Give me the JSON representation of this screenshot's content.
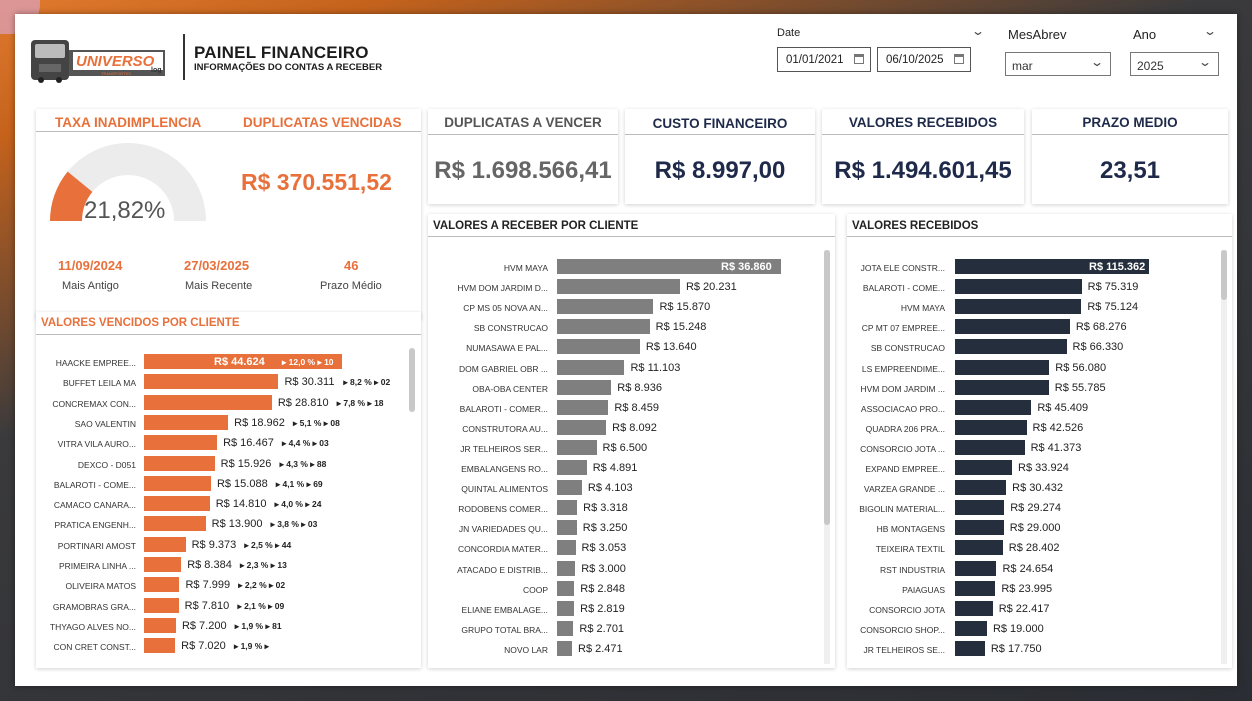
{
  "header": {
    "title": "PAINEL FINANCEIRO",
    "subtitle": "INFORMAÇÕES DO CONTAS A RECEBER",
    "logo_text": "UNIVERSO log TRANSPORTES"
  },
  "filters": {
    "date_label": "Date",
    "date_start": "01/01/2021",
    "date_end": "06/10/2025",
    "month_label": "MesAbrev",
    "month_value": "mar",
    "year_label": "Ano",
    "year_value": "2025"
  },
  "colors": {
    "orange": "#e8703a",
    "gray": "#7f7f7f",
    "navy": "#252e3d",
    "dark_navy_text": "#1f2a4a"
  },
  "kpis": {
    "taxa_title": "TAXA INADIMPLENCIA",
    "taxa_value": "21,82%",
    "taxa_fraction": 0.2182,
    "vencidas_title": "DUPLICATAS VENCIDAS",
    "vencidas_value": "R$ 370.551,52",
    "a_vencer_title": "DUPLICATAS A VENCER",
    "a_vencer_value": "R$ 1.698.566,41",
    "custo_title": "CUSTO FINANCEIRO",
    "custo_value": "R$ 8.997,00",
    "recebidos_title": "VALORES RECEBIDOS",
    "recebidos_value": "R$ 1.494.601,45",
    "prazo_title": "PRAZO MEDIO",
    "prazo_value": "23,51",
    "mais_antigo_value": "11/09/2024",
    "mais_antigo_label": "Mais Antigo",
    "mais_recente_value": "27/03/2025",
    "mais_recente_label": "Mais Recente",
    "prazo_medio_value": "46",
    "prazo_medio_label": "Prazo Médio"
  },
  "chart_data": [
    {
      "type": "bar",
      "title": "VALORES VENCIDOS POR CLIENTE",
      "categories": [
        "HAACKE EMPREE...",
        "BUFFET LEILA MA",
        "CONCREMAX CON...",
        "SAO VALENTIN",
        "VITRA VILA AURO...",
        "DEXCO - D051",
        "BALAROTI - COME...",
        "CAMACO CANARA...",
        "PRATICA ENGENH...",
        "PORTINARI AMOST",
        "PRIMEIRA LINHA ...",
        "OLIVEIRA MATOS",
        "GRAMOBRAS GRA...",
        "THYAGO ALVES NO...",
        "CON CRET CONST..."
      ],
      "values": [
        44624,
        30311,
        28810,
        18962,
        16467,
        15926,
        15088,
        14810,
        13900,
        9373,
        8384,
        7999,
        7810,
        7200,
        7020
      ],
      "labels": [
        "R$ 44.624",
        "R$ 30.311",
        "R$ 28.810",
        "R$ 18.962",
        "R$ 16.467",
        "R$ 15.926",
        "R$ 15.088",
        "R$ 14.810",
        "R$ 13.900",
        "R$ 9.373",
        "R$ 8.384",
        "R$ 7.999",
        "R$ 7.810",
        "R$ 7.200",
        "R$ 7.020"
      ],
      "extras": [
        "▸ 12,0 % ▸ 10",
        "▸ 8,2 % ▸ 02",
        "▸ 7,8 % ▸ 18",
        "▸ 5,1 % ▸ 08",
        "▸ 4,4 % ▸ 03",
        "▸ 4,3 % ▸ 88",
        "▸ 4,1 % ▸ 69",
        "▸ 4,0 % ▸ 24",
        "▸ 3,8 % ▸ 03",
        "▸ 2,5 % ▸ 44",
        "▸ 2,3 % ▸ 13",
        "▸ 2,2 % ▸ 02",
        "▸ 2,1 % ▸ 09",
        "▸ 1,9 % ▸ 81",
        "▸ 1,9 % ▸"
      ],
      "color": "#e8703a"
    },
    {
      "type": "bar",
      "title": "VALORES A RECEBER POR CLIENTE",
      "categories": [
        "HVM MAYA",
        "HVM DOM JARDIM D...",
        "CP MS 05 NOVA AN...",
        "SB CONSTRUCAO",
        "NUMASAWA E PAL...",
        "DOM GABRIEL OBR ...",
        "OBA-OBA CENTER",
        "BALAROTI - COMER...",
        "CONSTRUTORA AU...",
        "JR TELHEIROS SER...",
        "EMBALANGENS RO...",
        "QUINTAL ALIMENTOS",
        "RODOBENS COMER...",
        "JN VARIEDADES QU...",
        "CONCORDIA MATER...",
        "ATACADO E DISTRIB...",
        "COOP",
        "ELIANE EMBALAGE...",
        "GRUPO TOTAL BRA...",
        "NOVO LAR"
      ],
      "values": [
        36860,
        20231,
        15870,
        15248,
        13640,
        11103,
        8936,
        8459,
        8092,
        6500,
        4891,
        4103,
        3318,
        3250,
        3053,
        3000,
        2848,
        2819,
        2701,
        2471
      ],
      "labels": [
        "R$ 36.860",
        "R$ 20.231",
        "R$ 15.870",
        "R$ 15.248",
        "R$ 13.640",
        "R$ 11.103",
        "R$ 8.936",
        "R$ 8.459",
        "R$ 8.092",
        "R$ 6.500",
        "R$ 4.891",
        "R$ 4.103",
        "R$ 3.318",
        "R$ 3.250",
        "R$ 3.053",
        "R$ 3.000",
        "R$ 2.848",
        "R$ 2.819",
        "R$ 2.701",
        "R$ 2.471"
      ],
      "color": "#7f7f7f"
    },
    {
      "type": "bar",
      "title": "VALORES RECEBIDOS",
      "categories": [
        "JOTA ELE CONSTR...",
        "BALAROTI - COME...",
        "HVM MAYA",
        "CP MT 07 EMPREE...",
        "SB CONSTRUCAO",
        "LS EMPREENDIME...",
        "HVM DOM JARDIM ...",
        "ASSOCIACAO PRO...",
        "QUADRA 206 PRA...",
        "CONSORCIO JOTA ...",
        "EXPAND EMPREE...",
        "VARZEA GRANDE ...",
        "BIGOLIN MATERIAL...",
        "HB MONTAGENS",
        "TEIXEIRA TEXTIL",
        "RST INDUSTRIA",
        "PAIAGUAS",
        "CONSORCIO JOTA",
        "CONSORCIO SHOP...",
        "JR TELHEIROS SE..."
      ],
      "values": [
        115362,
        75319,
        75124,
        68276,
        66330,
        56080,
        55785,
        45409,
        42526,
        41373,
        33924,
        30432,
        29274,
        29000,
        28402,
        24654,
        23995,
        22417,
        19000,
        17750
      ],
      "labels": [
        "R$ 115.362",
        "R$ 75.319",
        "R$ 75.124",
        "R$ 68.276",
        "R$ 66.330",
        "R$ 56.080",
        "R$ 55.785",
        "R$ 45.409",
        "R$ 42.526",
        "R$ 41.373",
        "R$ 33.924",
        "R$ 30.432",
        "R$ 29.274",
        "R$ 29.000",
        "R$ 28.402",
        "R$ 24.654",
        "R$ 23.995",
        "R$ 22.417",
        "R$ 19.000",
        "R$ 17.750"
      ],
      "color": "#252e3d"
    }
  ]
}
